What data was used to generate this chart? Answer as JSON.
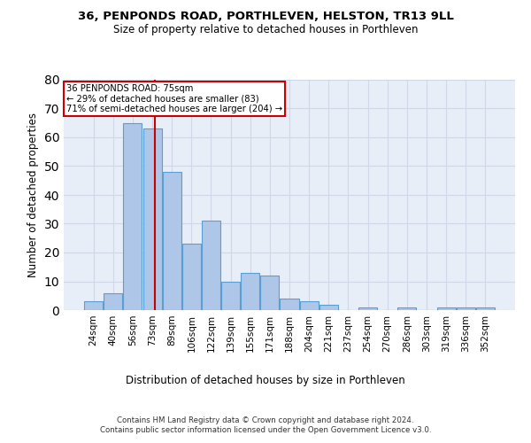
{
  "title1": "36, PENPONDS ROAD, PORTHLEVEN, HELSTON, TR13 9LL",
  "title2": "Size of property relative to detached houses in Porthleven",
  "xlabel": "Distribution of detached houses by size in Porthleven",
  "ylabel": "Number of detached properties",
  "categories": [
    "24sqm",
    "40sqm",
    "56sqm",
    "73sqm",
    "89sqm",
    "106sqm",
    "122sqm",
    "139sqm",
    "155sqm",
    "171sqm",
    "188sqm",
    "204sqm",
    "221sqm",
    "237sqm",
    "254sqm",
    "270sqm",
    "286sqm",
    "303sqm",
    "319sqm",
    "336sqm",
    "352sqm"
  ],
  "values": [
    3,
    6,
    65,
    63,
    48,
    23,
    31,
    10,
    13,
    12,
    4,
    3,
    2,
    0,
    1,
    0,
    1,
    0,
    1,
    1,
    1
  ],
  "bar_color": "#aec6e8",
  "bar_edge_color": "#5a9fd4",
  "annotation_line1": "36 PENPONDS ROAD: 75sqm",
  "annotation_line2": "← 29% of detached houses are smaller (83)",
  "annotation_line3": "71% of semi-detached houses are larger (204) →",
  "annotation_box_color": "#ffffff",
  "annotation_box_edge": "#cc0000",
  "red_line_color": "#cc0000",
  "ylim": [
    0,
    80
  ],
  "yticks": [
    0,
    10,
    20,
    30,
    40,
    50,
    60,
    70,
    80
  ],
  "grid_color": "#d0d8e8",
  "background_color": "#e8eef8",
  "footer1": "Contains HM Land Registry data © Crown copyright and database right 2024.",
  "footer2": "Contains public sector information licensed under the Open Government Licence v3.0."
}
